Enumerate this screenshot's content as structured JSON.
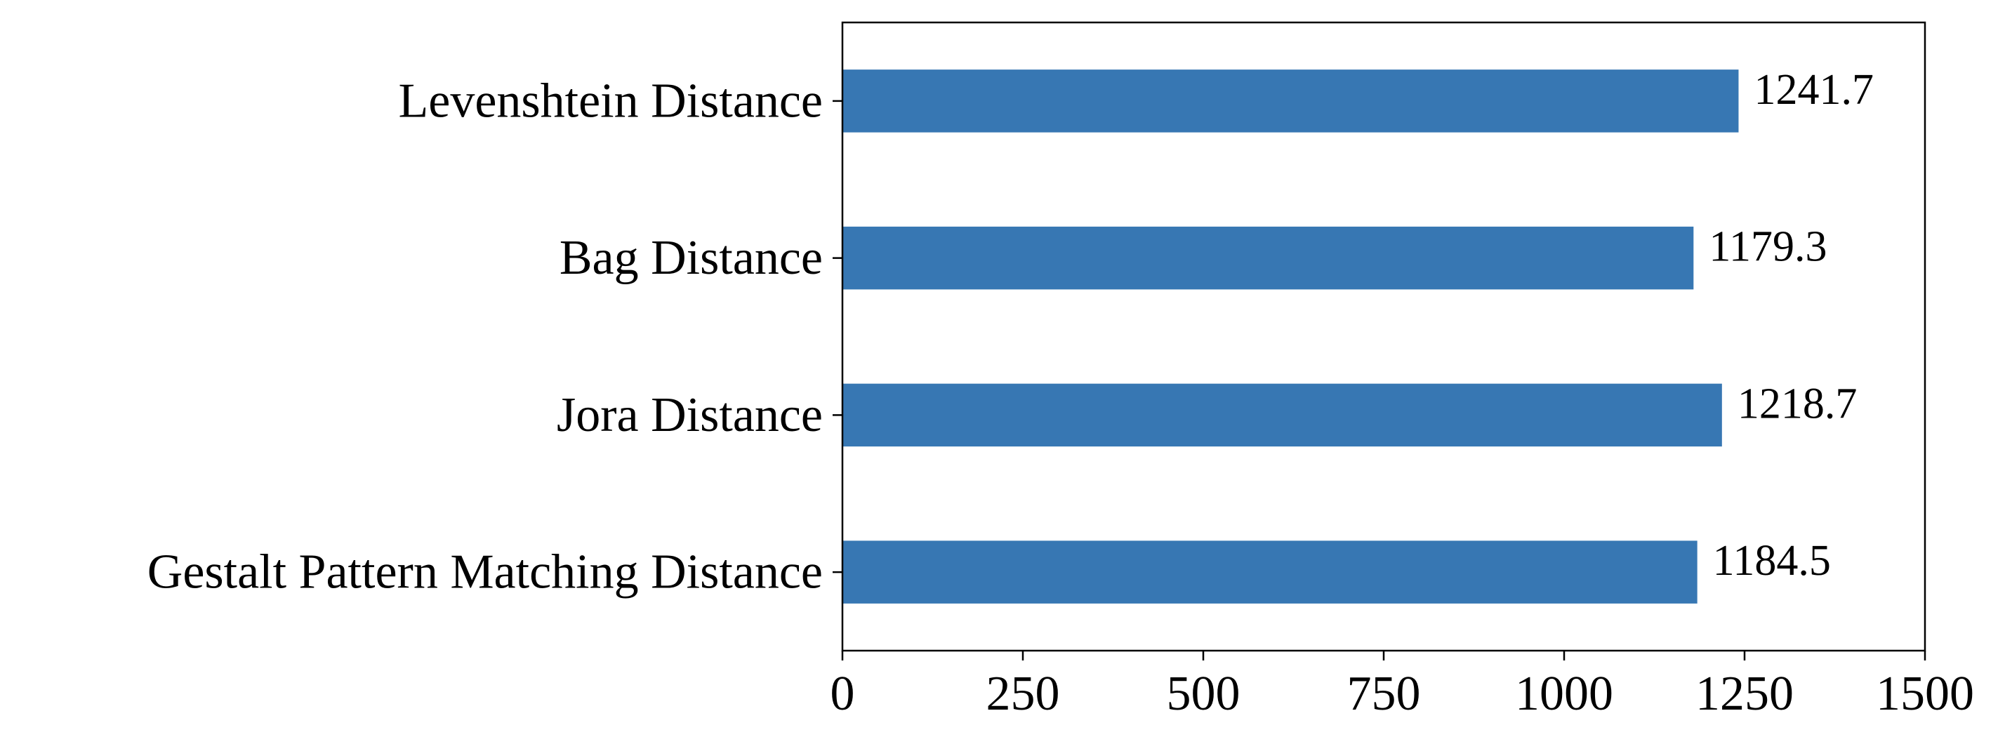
{
  "chart_data": {
    "type": "bar",
    "orientation": "horizontal",
    "title": "",
    "xlabel": "",
    "ylabel": "",
    "categories": [
      "Levenshtein Distance",
      "Bag Distance",
      "Jora Distance",
      "Gestalt Pattern Matching Distance"
    ],
    "values": [
      1241.7,
      1179.3,
      1218.7,
      1184.5
    ],
    "value_labels": [
      "1241.7",
      "1179.3",
      "1218.7",
      "1184.5"
    ],
    "xlim": [
      0,
      1500
    ],
    "xticks": [
      0,
      250,
      500,
      750,
      1000,
      1250,
      1500
    ],
    "xtick_labels": [
      "0",
      "250",
      "500",
      "750",
      "1000",
      "1250",
      "1500"
    ],
    "bar_color": "#3777b3",
    "grid": false,
    "legend": "none"
  }
}
